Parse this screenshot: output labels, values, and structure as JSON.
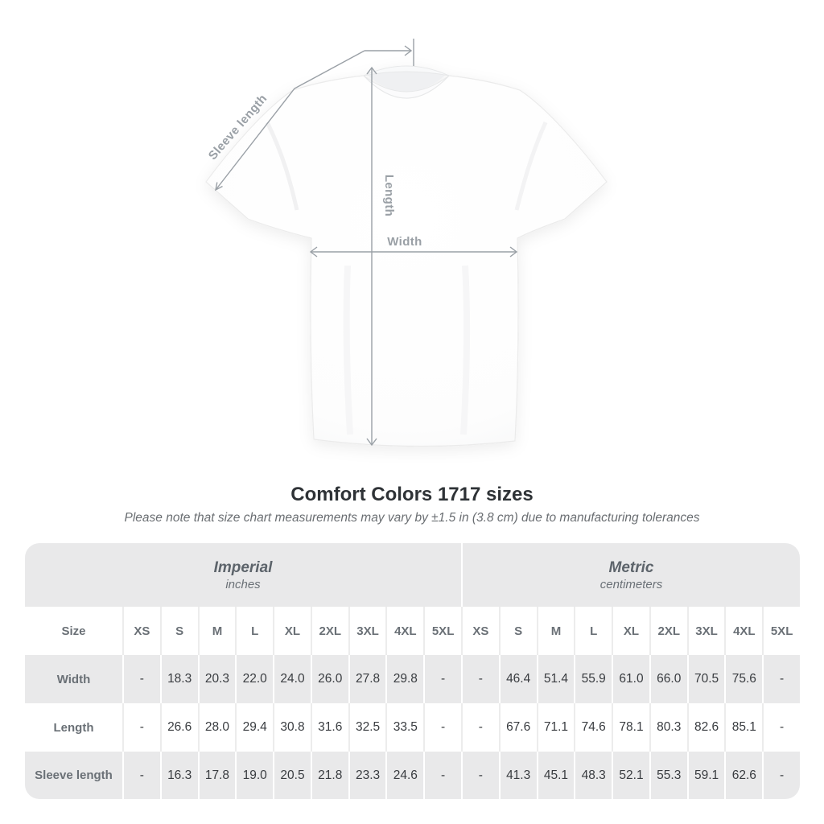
{
  "title": "Comfort Colors 1717 sizes",
  "subtitle": "Please note that size chart measurements may vary by ±1.5 in (3.8 cm) due to manufacturing tolerances",
  "diagram": {
    "labels": {
      "sleeve_length": "Sleeve length",
      "length": "Length",
      "width": "Width"
    }
  },
  "table": {
    "size_header": "Size",
    "unit_groups": [
      {
        "label": "Imperial",
        "sublabel": "inches"
      },
      {
        "label": "Metric",
        "sublabel": "centimeters"
      }
    ],
    "sizes": [
      "XS",
      "S",
      "M",
      "L",
      "XL",
      "2XL",
      "3XL",
      "4XL",
      "5XL"
    ],
    "rows": [
      {
        "label": "Width",
        "imperial": [
          "-",
          "18.3",
          "20.3",
          "22.0",
          "24.0",
          "26.0",
          "27.8",
          "29.8",
          "-"
        ],
        "metric": [
          "-",
          "46.4",
          "51.4",
          "55.9",
          "61.0",
          "66.0",
          "70.5",
          "75.6",
          "-"
        ]
      },
      {
        "label": "Length",
        "imperial": [
          "-",
          "26.6",
          "28.0",
          "29.4",
          "30.8",
          "31.6",
          "32.5",
          "33.5",
          "-"
        ],
        "metric": [
          "-",
          "67.6",
          "71.1",
          "74.6",
          "78.1",
          "80.3",
          "82.6",
          "85.1",
          "-"
        ]
      },
      {
        "label": "Sleeve length",
        "imperial": [
          "-",
          "16.3",
          "17.8",
          "19.0",
          "20.5",
          "21.8",
          "23.3",
          "24.6",
          "-"
        ],
        "metric": [
          "-",
          "41.3",
          "45.1",
          "48.3",
          "52.1",
          "55.3",
          "59.1",
          "62.6",
          "-"
        ]
      }
    ]
  },
  "colors": {
    "annotation_gray": "#9aa0a6",
    "table_stripe": "#e9e9ea",
    "heading_text": "#2e3236",
    "muted_text": "#6a7076",
    "value_text": "#393c40"
  }
}
